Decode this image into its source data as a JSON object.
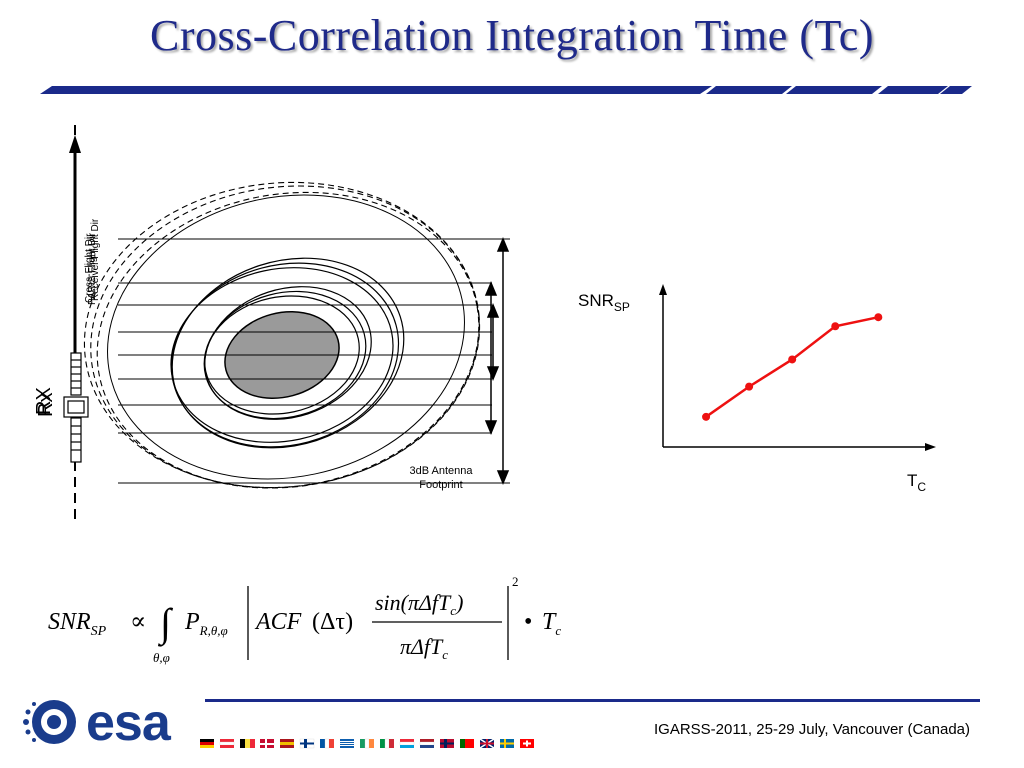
{
  "title": "Cross-Correlation Integration Time (Tc)",
  "diagram": {
    "vertical_labels": [
      "PARIS Flight Dir",
      "Cross-Flight Dir",
      "Receiver Flight Dir"
    ],
    "rx_label": "Rx",
    "rx_label_2": "RX",
    "footprint_label_line1": "3dB Antenna",
    "footprint_label_line2": "Footprint"
  },
  "snr_plot": {
    "y_label_main": "SNR",
    "y_label_sub": "SP",
    "x_label_main": "T",
    "x_label_sub": "C",
    "line_color": "#ee1111"
  },
  "chart_data": {
    "type": "line",
    "title": "",
    "xlabel": "TC",
    "ylabel": "SNRSP",
    "series": [
      {
        "x": [
          1,
          2,
          3,
          4,
          5
        ],
        "values": [
          1.0,
          2.0,
          2.9,
          4.0,
          4.3
        ]
      }
    ]
  },
  "equation": {
    "lhs_main": "SNR",
    "lhs_sub": "SP",
    "proportional": "∝",
    "integral": "∫",
    "integral_sub": "θ,φ",
    "p_main": "P",
    "p_sub": "R,θ,φ",
    "acf": "ACF",
    "acf_arg": "(Δτ)",
    "numerator": "sin(πΔfT",
    "numerator_sub": "c",
    "numerator_close": ")",
    "denominator": "πΔfT",
    "denominator_sub": "c",
    "exponent": "2",
    "bullet": "•",
    "tail_main": "T",
    "tail_sub": "c"
  },
  "footer": {
    "logo_text": "esa",
    "citation": "IGARSS-2011, 25-29 July, Vancouver (Canada)"
  },
  "colors": {
    "title": "#1f2a8a",
    "accent_bar": "#1a2a8a",
    "esa_blue": "#1a3c8c"
  }
}
